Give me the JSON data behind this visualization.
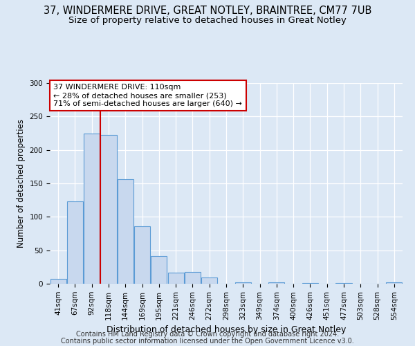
{
  "title1": "37, WINDERMERE DRIVE, GREAT NOTLEY, BRAINTREE, CM77 7UB",
  "title2": "Size of property relative to detached houses in Great Notley",
  "xlabel": "Distribution of detached houses by size in Great Notley",
  "ylabel": "Number of detached properties",
  "categories": [
    "41sqm",
    "67sqm",
    "92sqm",
    "118sqm",
    "144sqm",
    "169sqm",
    "195sqm",
    "221sqm",
    "246sqm",
    "272sqm",
    "298sqm",
    "323sqm",
    "349sqm",
    "374sqm",
    "400sqm",
    "426sqm",
    "451sqm",
    "477sqm",
    "503sqm",
    "528sqm",
    "554sqm"
  ],
  "bar_heights": [
    7,
    123,
    225,
    222,
    156,
    86,
    41,
    17,
    18,
    9,
    0,
    2,
    0,
    2,
    0,
    1,
    0,
    1,
    0,
    0,
    2
  ],
  "bar_color": "#c8d8ee",
  "bar_edge_color": "#5b9bd5",
  "vline_x_idx": 2.5,
  "vline_color": "#cc0000",
  "annotation_line1": "37 WINDERMERE DRIVE: 110sqm",
  "annotation_line2": "← 28% of detached houses are smaller (253)",
  "annotation_line3": "71% of semi-detached houses are larger (640) →",
  "annotation_box_color": "#ffffff",
  "annotation_box_edge": "#cc0000",
  "ylim": [
    0,
    300
  ],
  "yticks": [
    0,
    50,
    100,
    150,
    200,
    250,
    300
  ],
  "footer1": "Contains HM Land Registry data © Crown copyright and database right 2024.",
  "footer2": "Contains public sector information licensed under the Open Government Licence v3.0.",
  "background_color": "#dce8f5",
  "plot_bg_color": "#dce8f5",
  "title1_fontsize": 10.5,
  "title2_fontsize": 9.5,
  "xlabel_fontsize": 9,
  "ylabel_fontsize": 8.5,
  "tick_fontsize": 7.5,
  "footer_fontsize": 7
}
